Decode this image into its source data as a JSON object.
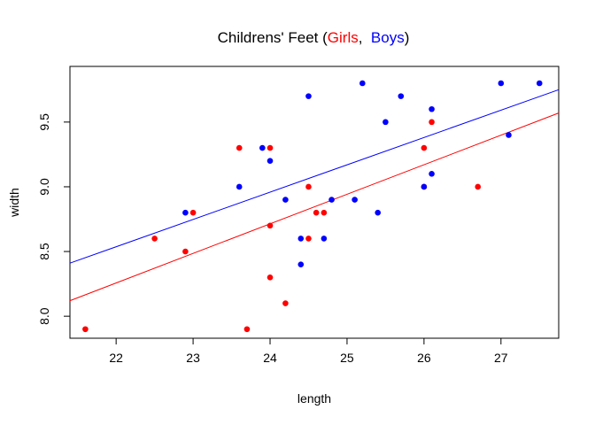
{
  "chart_data": {
    "type": "scatter",
    "title": {
      "prefix": "Childrens' Feet (",
      "girls_label": "Girls",
      "separator": ",  ",
      "boys_label": "Boys",
      "suffix": ")"
    },
    "xlabel": "length",
    "ylabel": "width",
    "xlim": [
      21.4,
      27.75
    ],
    "ylim": [
      7.83,
      9.93
    ],
    "xticks": [
      22,
      23,
      24,
      25,
      26,
      27
    ],
    "yticks": [
      8.0,
      8.5,
      9.0,
      9.5
    ],
    "ytick_labels": [
      "8.0",
      "8.5",
      "9.0",
      "9.5"
    ],
    "grid": false,
    "colors": {
      "girls": "#ff0000",
      "boys": "#0000ff",
      "axis": "#000000"
    },
    "series": [
      {
        "name": "Girls",
        "color": "#ff0000",
        "points": [
          [
            21.6,
            7.9
          ],
          [
            22.5,
            8.6
          ],
          [
            22.9,
            8.5
          ],
          [
            23.0,
            8.8
          ],
          [
            23.6,
            9.3
          ],
          [
            23.7,
            7.9
          ],
          [
            24.0,
            9.3
          ],
          [
            24.0,
            8.7
          ],
          [
            24.0,
            8.3
          ],
          [
            24.2,
            8.1
          ],
          [
            24.5,
            9.0
          ],
          [
            24.5,
            8.6
          ],
          [
            24.6,
            8.8
          ],
          [
            24.7,
            8.8
          ],
          [
            26.0,
            9.3
          ],
          [
            26.0,
            9.0
          ],
          [
            26.1,
            9.5
          ],
          [
            26.7,
            9.0
          ]
        ],
        "fit_line": {
          "x": [
            21.4,
            27.75
          ],
          "y": [
            8.12,
            9.57
          ]
        }
      },
      {
        "name": "Boys",
        "color": "#0000ff",
        "points": [
          [
            22.9,
            8.8
          ],
          [
            23.6,
            9.0
          ],
          [
            23.9,
            9.3
          ],
          [
            24.0,
            9.2
          ],
          [
            24.2,
            8.9
          ],
          [
            24.4,
            8.6
          ],
          [
            24.4,
            8.4
          ],
          [
            24.5,
            9.7
          ],
          [
            24.7,
            8.6
          ],
          [
            24.8,
            8.9
          ],
          [
            25.1,
            8.9
          ],
          [
            25.2,
            9.8
          ],
          [
            25.4,
            8.8
          ],
          [
            25.5,
            9.5
          ],
          [
            25.7,
            9.7
          ],
          [
            26.0,
            9.0
          ],
          [
            26.1,
            9.6
          ],
          [
            26.1,
            9.1
          ],
          [
            27.0,
            9.8
          ],
          [
            27.1,
            9.4
          ],
          [
            27.5,
            9.8
          ]
        ],
        "fit_line": {
          "x": [
            21.4,
            27.75
          ],
          "y": [
            8.41,
            9.75
          ]
        }
      }
    ]
  }
}
